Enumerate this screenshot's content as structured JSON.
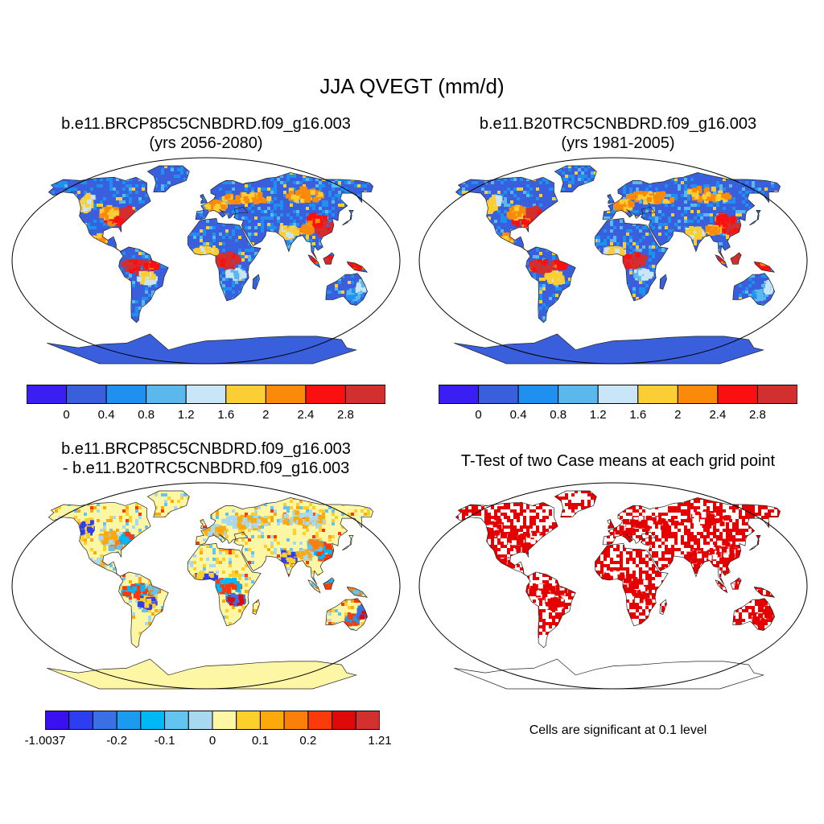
{
  "main_title": "JJA QVEGT (mm/d)",
  "panels": [
    {
      "title_line1": "b.e11.BRCP85C5CNBDRD.f09_g16.003",
      "title_line2": "(yrs 2056-2080)"
    },
    {
      "title_line1": "b.e11.B20TRC5CNBDRD.f09_g16.003",
      "title_line2": "(yrs 1981-2005)"
    },
    {
      "title_line1": "b.e11.BRCP85C5CNBDRD.f09_g16.003",
      "title_line2": "- b.e11.B20TRC5CNBDRD.f09_g16.003"
    },
    {
      "title_line1": "T-Test of two Case means at each grid point",
      "note": "Cells are significant at 0.1 level"
    }
  ],
  "colorbars": {
    "absolute": {
      "colors": [
        "#3b1ef2",
        "#3a5fdc",
        "#1f8ff0",
        "#5ab8ec",
        "#c8e6f7",
        "#fcce35",
        "#fb8a0b",
        "#fa1010",
        "#d22f2f"
      ],
      "labels": [
        "0",
        "0.4",
        "0.8",
        "1.2",
        "1.6",
        "2",
        "2.4",
        "2.8"
      ]
    },
    "difference": {
      "colors": [
        "#3a10f0",
        "#2d3ef0",
        "#3a6fe6",
        "#1c9af0",
        "#00b8f5",
        "#62c4ef",
        "#a9d9f1",
        "#fdf6a4",
        "#fccf2b",
        "#fca90c",
        "#fb7f0b",
        "#fb3a0b",
        "#e00909",
        "#d22f2f"
      ],
      "labels": [
        "-1.0037",
        "-0.2",
        "-0.1",
        "0",
        "0.1",
        "0.2",
        "1.21"
      ]
    }
  },
  "colors": {
    "ocean": "#ffffff",
    "significant": "#e50000",
    "antarctica_abs": "#3a5fdc",
    "antarctica_diff": "#fdf6a4"
  }
}
